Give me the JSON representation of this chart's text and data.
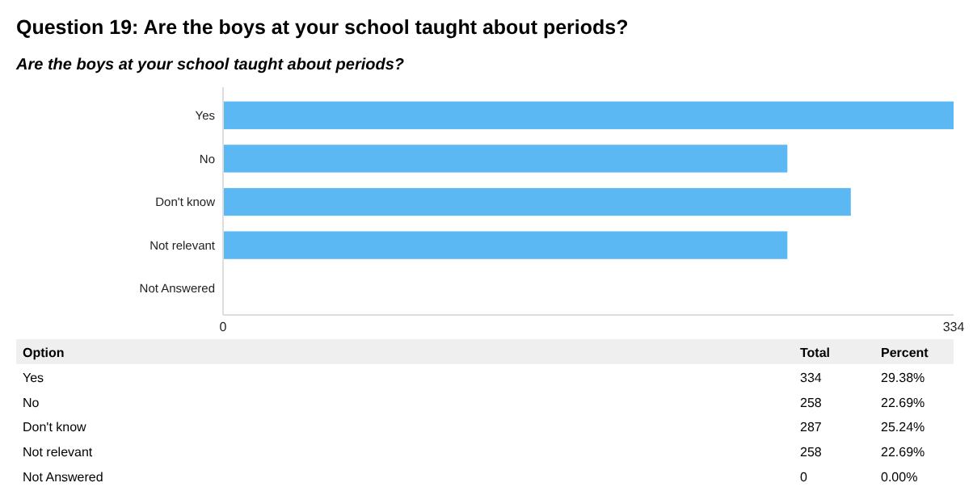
{
  "chart_data": [
    {
      "type": "bar",
      "orientation": "horizontal",
      "title": "Question 19: Are the boys at your school taught about periods?",
      "subtitle": "Are the boys at your school taught about periods?",
      "categories": [
        "Yes",
        "No",
        "Don't know",
        "Not relevant",
        "Not Answered"
      ],
      "values": [
        334,
        258,
        287,
        258,
        0
      ],
      "color": "#5bb8f2",
      "xlim": [
        0,
        334
      ],
      "xticks": [
        0,
        334
      ]
    },
    {
      "type": "other",
      "annotations": [
        "Option",
        "Total",
        "Percent",
        "Yes",
        "334",
        "29.38%",
        "No",
        "258",
        "22.69%",
        "Don't know",
        "287",
        "25.24%",
        "Not relevant",
        "258",
        "22.69%",
        "Not Answered",
        "0",
        "0.00%"
      ]
    }
  ]
}
